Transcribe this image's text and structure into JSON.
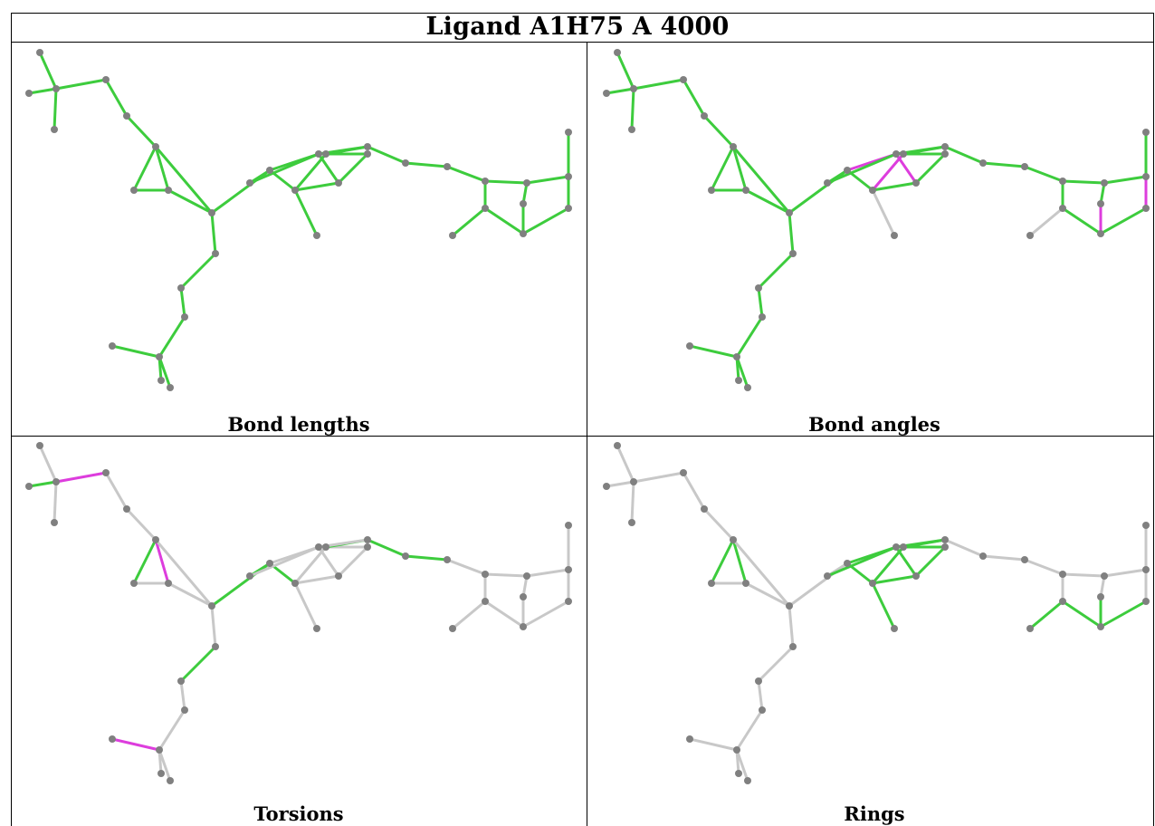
{
  "title": "Ligand A1H75 A 4000",
  "colors": {
    "good": "#3dcc3d",
    "outlier": "#dd3ddd",
    "neutral": "#c8c8c8",
    "atom": "#808080"
  },
  "panels": [
    {
      "caption": "Bond lengths",
      "status": "gggggggggggggggggggggggggggggggggggggggggggg"
    },
    {
      "caption": "Bond angles",
      "status": "ggggggggggggggggggggoooggggggggggoggonnggggg"
    },
    {
      "caption": "Torsions",
      "status": "ngnonngonnngnnonngggnnnnngggnnnnnnnnnnnnnnnn"
    },
    {
      "caption": "Rings",
      "status": "nnnnnnggnnnnnnnnnnngggggggnnnnnnnnggggggggnn"
    }
  ]
}
